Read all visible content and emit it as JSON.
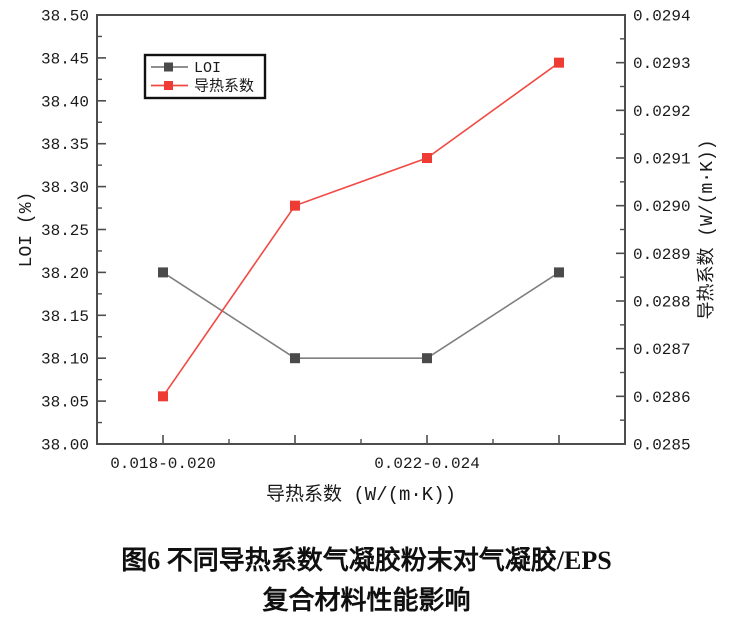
{
  "figure": {
    "caption_line1": "图6  不同导热系数气凝胶粉末对气凝胶/EPS",
    "caption_line2": "复合材料性能影响"
  },
  "colors": {
    "axis": "#4d4d4d",
    "tick_text": "#1a1a1a",
    "loi_marker": "#4a4a4a",
    "loi_line": "#7f7f7f",
    "thermal_marker": "#ee3b33",
    "thermal_line": "#f04b43",
    "legend_border": "#111111",
    "legend_text": "#333333"
  },
  "chart_data": {
    "type": "line",
    "title": "",
    "x_axis": {
      "label": "导热系数 (W/(m·K))",
      "range": [
        0.5,
        4.5
      ],
      "positions": [
        1,
        2,
        3,
        4
      ],
      "minor_positions": [
        1.5,
        2.5,
        3.5
      ],
      "tick_labels": [
        {
          "pos": 1,
          "label": "0.018-0.020"
        },
        {
          "pos": 3,
          "label": "0.022-0.024"
        }
      ]
    },
    "left_axis": {
      "label": "LOI (%)",
      "min": 38.0,
      "max": 38.5,
      "tick_labels": [
        "38.00",
        "38.05",
        "38.10",
        "38.15",
        "38.20",
        "38.25",
        "38.30",
        "38.35",
        "38.40",
        "38.45",
        "38.50"
      ]
    },
    "right_axis": {
      "label": "导热系数 (W/(m·K))",
      "min": 0.0285,
      "max": 0.0294,
      "tick_labels": [
        "0.0285",
        "0.0286",
        "0.0287",
        "0.0288",
        "0.0289",
        "0.0290",
        "0.0291",
        "0.0292",
        "0.0293",
        "0.0294"
      ]
    },
    "series": [
      {
        "name": "LOI",
        "axis": "left",
        "x": [
          1,
          2,
          3,
          4
        ],
        "values": [
          38.2,
          38.1,
          38.1,
          38.2
        ]
      },
      {
        "name": "导热系数",
        "axis": "right",
        "x": [
          1,
          2,
          3,
          4
        ],
        "values": [
          0.0286,
          0.029,
          0.0291,
          0.0293
        ]
      }
    ],
    "legend": {
      "entries": [
        "LOI",
        "导热系数"
      ],
      "position": "top-left"
    },
    "grid": false
  }
}
